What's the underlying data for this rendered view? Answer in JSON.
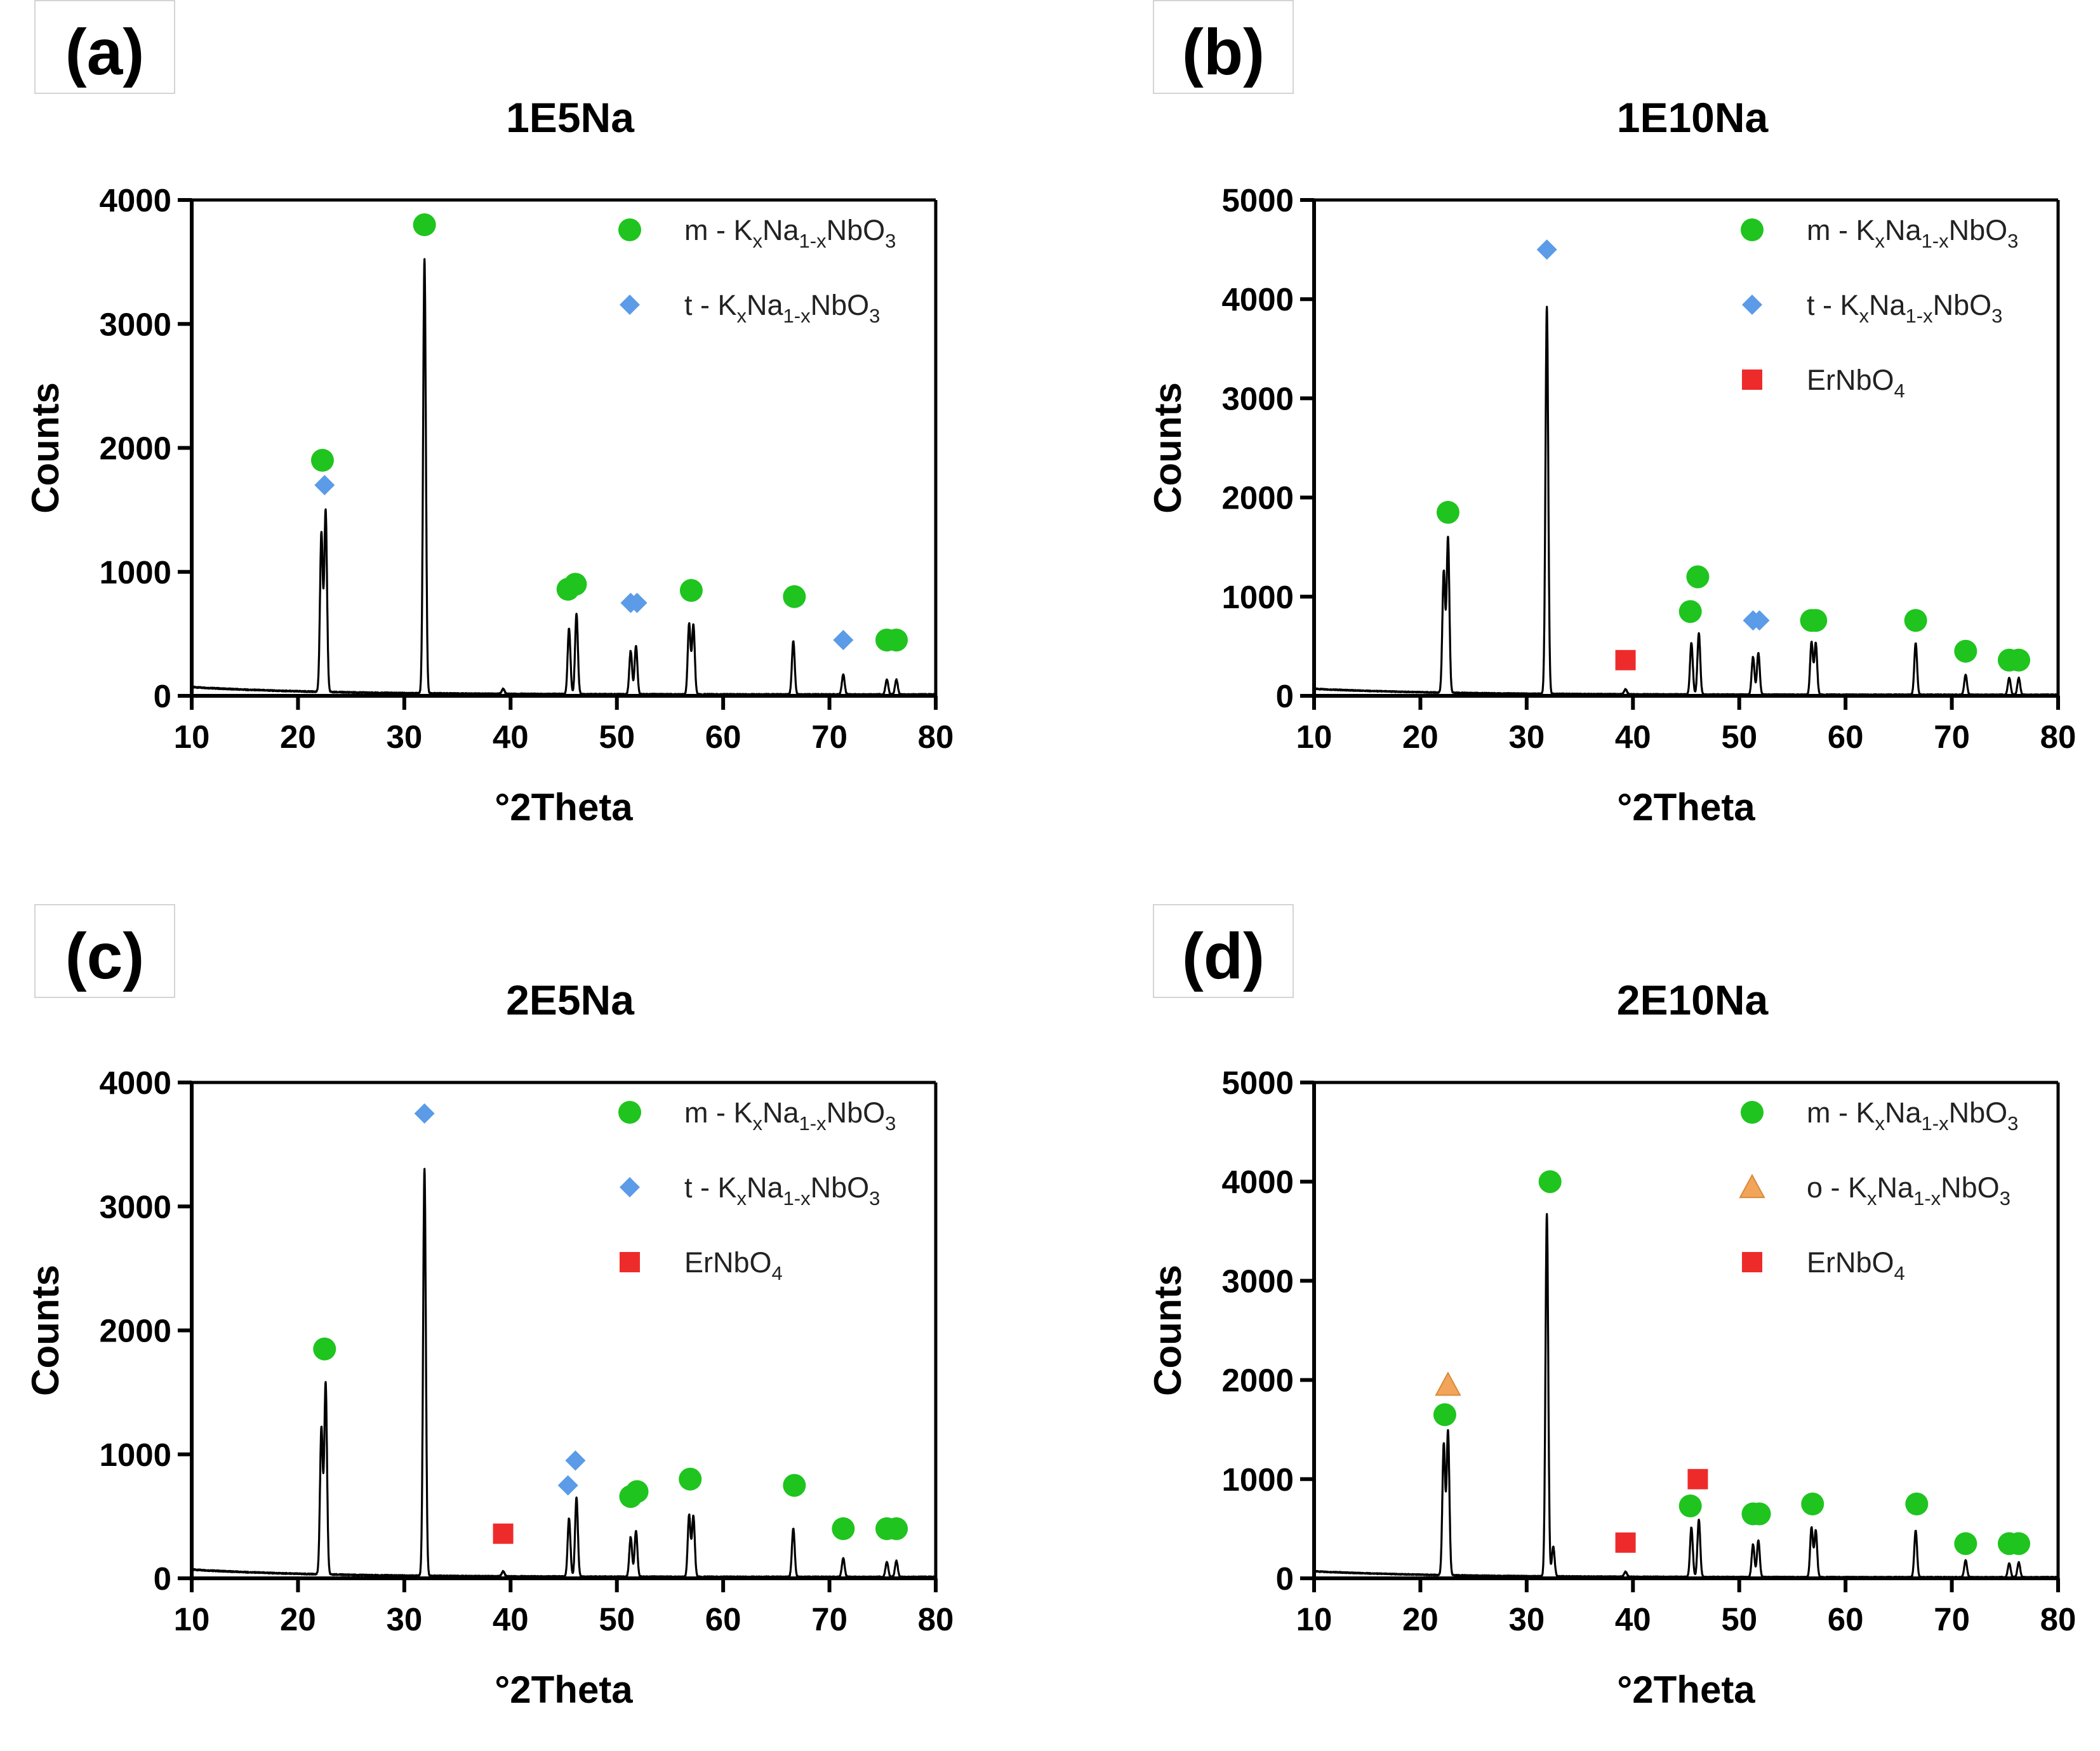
{
  "colors": {
    "m_circle": "#1fc41f",
    "t_diamond": "#5b9be8",
    "erNbO4_square": "#ee2b2b",
    "o_triangle": "#f2a55a",
    "line": "#000000"
  },
  "chart_data": [
    {
      "panel_label": "(a)",
      "type": "line",
      "title": "1E5Na",
      "xlabel": "°2Theta",
      "ylabel": "Counts",
      "xlim": [
        10,
        80
      ],
      "ylim": [
        0,
        4000
      ],
      "xticks": [
        "10",
        "20",
        "30",
        "40",
        "50",
        "60",
        "70",
        "80"
      ],
      "yticks": [
        "0",
        "1000",
        "2000",
        "3000",
        "4000"
      ],
      "baseline": 60,
      "peaks": [
        {
          "x": 22.2,
          "y": 1280
        },
        {
          "x": 22.6,
          "y": 1460
        },
        {
          "x": 31.9,
          "y": 3500
        },
        {
          "x": 39.3,
          "y": 40
        },
        {
          "x": 45.5,
          "y": 530
        },
        {
          "x": 46.2,
          "y": 650
        },
        {
          "x": 51.3,
          "y": 350
        },
        {
          "x": 51.8,
          "y": 390
        },
        {
          "x": 56.8,
          "y": 570
        },
        {
          "x": 57.2,
          "y": 560
        },
        {
          "x": 66.6,
          "y": 430
        },
        {
          "x": 71.3,
          "y": 160
        },
        {
          "x": 75.4,
          "y": 120
        },
        {
          "x": 76.3,
          "y": 120
        }
      ],
      "markers": [
        {
          "type": "circle",
          "x": 22.3,
          "y": 1900
        },
        {
          "type": "diamond",
          "x": 22.5,
          "y": 1700
        },
        {
          "type": "circle",
          "x": 31.9,
          "y": 3800
        },
        {
          "type": "circle",
          "x": 45.4,
          "y": 860
        },
        {
          "type": "circle",
          "x": 46.1,
          "y": 900
        },
        {
          "type": "diamond",
          "x": 51.3,
          "y": 750
        },
        {
          "type": "diamond",
          "x": 51.9,
          "y": 750
        },
        {
          "type": "circle",
          "x": 57.0,
          "y": 850
        },
        {
          "type": "circle",
          "x": 66.7,
          "y": 800
        },
        {
          "type": "diamond",
          "x": 71.3,
          "y": 450
        },
        {
          "type": "circle",
          "x": 75.4,
          "y": 450
        },
        {
          "type": "circle",
          "x": 76.3,
          "y": 450
        }
      ],
      "legend": [
        {
          "marker": "circle",
          "prefix": "m - K",
          "sub1": "x",
          "mid": "Na",
          "sub2": "1-x",
          "suffix": "NbO",
          "sub3": "3"
        },
        {
          "marker": "diamond",
          "prefix": "t - K",
          "sub1": "x",
          "mid": "Na",
          "sub2": "1-x",
          "suffix": "NbO",
          "sub3": "3"
        }
      ]
    },
    {
      "panel_label": "(b)",
      "type": "line",
      "title": "1E10Na",
      "xlabel": "°2Theta",
      "ylabel": "Counts",
      "xlim": [
        10,
        80
      ],
      "ylim": [
        0,
        5000
      ],
      "xticks": [
        "10",
        "20",
        "30",
        "40",
        "50",
        "60",
        "70",
        "80"
      ],
      "yticks": [
        "0",
        "1000",
        "2000",
        "3000",
        "4000",
        "5000"
      ],
      "baseline": 60,
      "peaks": [
        {
          "x": 22.2,
          "y": 1220
        },
        {
          "x": 22.6,
          "y": 1560
        },
        {
          "x": 31.9,
          "y": 3900
        },
        {
          "x": 39.3,
          "y": 50
        },
        {
          "x": 45.5,
          "y": 520
        },
        {
          "x": 46.2,
          "y": 620
        },
        {
          "x": 51.3,
          "y": 380
        },
        {
          "x": 51.8,
          "y": 420
        },
        {
          "x": 56.8,
          "y": 530
        },
        {
          "x": 57.2,
          "y": 520
        },
        {
          "x": 66.6,
          "y": 520
        },
        {
          "x": 71.3,
          "y": 200
        },
        {
          "x": 75.4,
          "y": 170
        },
        {
          "x": 76.3,
          "y": 170
        }
      ],
      "markers": [
        {
          "type": "circle",
          "x": 22.6,
          "y": 1850
        },
        {
          "type": "diamond",
          "x": 31.9,
          "y": 4500
        },
        {
          "type": "square",
          "x": 39.3,
          "y": 360
        },
        {
          "type": "circle",
          "x": 45.4,
          "y": 850
        },
        {
          "type": "circle",
          "x": 46.1,
          "y": 1200
        },
        {
          "type": "diamond",
          "x": 51.3,
          "y": 760
        },
        {
          "type": "diamond",
          "x": 51.9,
          "y": 760
        },
        {
          "type": "circle",
          "x": 56.8,
          "y": 760
        },
        {
          "type": "circle",
          "x": 57.2,
          "y": 760
        },
        {
          "type": "circle",
          "x": 66.6,
          "y": 760
        },
        {
          "type": "circle",
          "x": 71.3,
          "y": 450
        },
        {
          "type": "circle",
          "x": 75.4,
          "y": 360
        },
        {
          "type": "circle",
          "x": 76.3,
          "y": 360
        }
      ],
      "legend": [
        {
          "marker": "circle",
          "prefix": "m - K",
          "sub1": "x",
          "mid": "Na",
          "sub2": "1-x",
          "suffix": "NbO",
          "sub3": "3"
        },
        {
          "marker": "diamond",
          "prefix": "t - K",
          "sub1": "x",
          "mid": "Na",
          "sub2": "1-x",
          "suffix": "NbO",
          "sub3": "3"
        },
        {
          "marker": "square",
          "prefix": "ErNbO",
          "sub1": "4",
          "mid": "",
          "sub2": "",
          "suffix": "",
          "sub3": ""
        }
      ]
    },
    {
      "panel_label": "(c)",
      "type": "line",
      "title": "2E5Na",
      "xlabel": "°2Theta",
      "ylabel": "Counts",
      "xlim": [
        10,
        80
      ],
      "ylim": [
        0,
        4000
      ],
      "xticks": [
        "10",
        "20",
        "30",
        "40",
        "50",
        "60",
        "70",
        "80"
      ],
      "yticks": [
        "0",
        "1000",
        "2000",
        "3000",
        "4000"
      ],
      "baseline": 60,
      "peaks": [
        {
          "x": 22.2,
          "y": 1180
        },
        {
          "x": 22.6,
          "y": 1540
        },
        {
          "x": 31.9,
          "y": 3280
        },
        {
          "x": 39.3,
          "y": 40
        },
        {
          "x": 45.5,
          "y": 470
        },
        {
          "x": 46.2,
          "y": 640
        },
        {
          "x": 51.3,
          "y": 320
        },
        {
          "x": 51.8,
          "y": 370
        },
        {
          "x": 56.8,
          "y": 500
        },
        {
          "x": 57.2,
          "y": 490
        },
        {
          "x": 66.6,
          "y": 390
        },
        {
          "x": 71.3,
          "y": 150
        },
        {
          "x": 75.4,
          "y": 120
        },
        {
          "x": 76.3,
          "y": 130
        }
      ],
      "markers": [
        {
          "type": "circle",
          "x": 22.5,
          "y": 1850
        },
        {
          "type": "diamond",
          "x": 31.9,
          "y": 3750
        },
        {
          "type": "square",
          "x": 39.3,
          "y": 360
        },
        {
          "type": "diamond",
          "x": 45.4,
          "y": 750
        },
        {
          "type": "diamond",
          "x": 46.1,
          "y": 950
        },
        {
          "type": "circle",
          "x": 51.3,
          "y": 660
        },
        {
          "type": "circle",
          "x": 51.9,
          "y": 700
        },
        {
          "type": "circle",
          "x": 56.9,
          "y": 800
        },
        {
          "type": "circle",
          "x": 66.7,
          "y": 750
        },
        {
          "type": "circle",
          "x": 71.3,
          "y": 400
        },
        {
          "type": "circle",
          "x": 75.4,
          "y": 400
        },
        {
          "type": "circle",
          "x": 76.3,
          "y": 400
        }
      ],
      "legend": [
        {
          "marker": "circle",
          "prefix": "m - K",
          "sub1": "x",
          "mid": "Na",
          "sub2": "1-x",
          "suffix": "NbO",
          "sub3": "3"
        },
        {
          "marker": "diamond",
          "prefix": "t - K",
          "sub1": "x",
          "mid": "Na",
          "sub2": "1-x",
          "suffix": "NbO",
          "sub3": "3"
        },
        {
          "marker": "square",
          "prefix": "ErNbO",
          "sub1": "4",
          "mid": "",
          "sub2": "",
          "suffix": "",
          "sub3": ""
        }
      ]
    },
    {
      "panel_label": "(d)",
      "type": "line",
      "title": "2E10Na",
      "xlabel": "°2Theta",
      "ylabel": "Counts",
      "xlim": [
        10,
        80
      ],
      "ylim": [
        0,
        5000
      ],
      "xticks": [
        "10",
        "20",
        "30",
        "40",
        "50",
        "60",
        "70",
        "80"
      ],
      "yticks": [
        "0",
        "1000",
        "2000",
        "3000",
        "4000",
        "5000"
      ],
      "baseline": 60,
      "peaks": [
        {
          "x": 22.2,
          "y": 1320
        },
        {
          "x": 22.6,
          "y": 1450
        },
        {
          "x": 31.9,
          "y": 3650
        },
        {
          "x": 32.5,
          "y": 300
        },
        {
          "x": 39.3,
          "y": 50
        },
        {
          "x": 45.5,
          "y": 500
        },
        {
          "x": 46.2,
          "y": 580
        },
        {
          "x": 51.3,
          "y": 330
        },
        {
          "x": 51.8,
          "y": 370
        },
        {
          "x": 56.8,
          "y": 500
        },
        {
          "x": 57.2,
          "y": 470
        },
        {
          "x": 66.6,
          "y": 470
        },
        {
          "x": 71.3,
          "y": 170
        },
        {
          "x": 75.4,
          "y": 140
        },
        {
          "x": 76.3,
          "y": 150
        }
      ],
      "markers": [
        {
          "type": "triangle",
          "x": 22.6,
          "y": 1950
        },
        {
          "type": "circle",
          "x": 22.3,
          "y": 1650
        },
        {
          "type": "circle",
          "x": 32.2,
          "y": 4000
        },
        {
          "type": "square",
          "x": 39.3,
          "y": 360
        },
        {
          "type": "circle",
          "x": 45.4,
          "y": 730
        },
        {
          "type": "square",
          "x": 46.1,
          "y": 1000
        },
        {
          "type": "circle",
          "x": 51.3,
          "y": 650
        },
        {
          "type": "circle",
          "x": 51.9,
          "y": 650
        },
        {
          "type": "circle",
          "x": 56.9,
          "y": 750
        },
        {
          "type": "circle",
          "x": 66.7,
          "y": 750
        },
        {
          "type": "circle",
          "x": 71.3,
          "y": 350
        },
        {
          "type": "circle",
          "x": 75.4,
          "y": 350
        },
        {
          "type": "circle",
          "x": 76.3,
          "y": 350
        }
      ],
      "legend": [
        {
          "marker": "circle",
          "prefix": "m - K",
          "sub1": "x",
          "mid": "Na",
          "sub2": "1-x",
          "suffix": "NbO",
          "sub3": "3"
        },
        {
          "marker": "triangle",
          "prefix": "o - K",
          "sub1": "x",
          "mid": "Na",
          "sub2": "1-x",
          "suffix": "NbO",
          "sub3": "3"
        },
        {
          "marker": "square",
          "prefix": "ErNbO",
          "sub1": "4",
          "mid": "",
          "sub2": "",
          "suffix": "",
          "sub3": ""
        }
      ]
    }
  ]
}
